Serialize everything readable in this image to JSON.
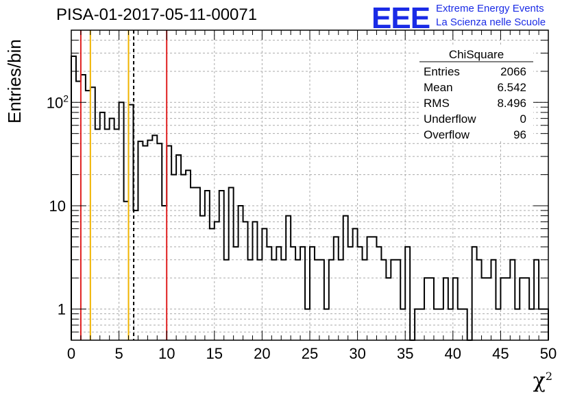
{
  "header": {
    "run_title": "PISA-01-2017-05-11-00071",
    "logo_text": "EEE",
    "logo_line1": "Extreme Energy Events",
    "logo_line2": "La Scienza nelle Scuole",
    "logo_color": "#1a2be6"
  },
  "stats_box": {
    "title": "ChiSquare",
    "rows": [
      {
        "label": "Entries",
        "value": "2066"
      },
      {
        "label": "Mean",
        "value": "6.542"
      },
      {
        "label": "RMS",
        "value": "8.496"
      },
      {
        "label": "Underflow",
        "value": "0"
      },
      {
        "label": "Overflow",
        "value": "96"
      }
    ]
  },
  "chart_data": {
    "type": "histogram",
    "xlabel": "χ",
    "xlabel_sup": "2",
    "ylabel": "Entries/bin",
    "xlim": [
      0,
      50
    ],
    "ylim": [
      0.5,
      500
    ],
    "y_scale": "log",
    "grid": true,
    "bin_width": 0.5,
    "x_ticks": [
      0,
      5,
      10,
      15,
      20,
      25,
      30,
      35,
      40,
      45,
      50
    ],
    "x_tick_labels": [
      "0",
      "5",
      "10",
      "15",
      "20",
      "25",
      "30",
      "35",
      "40",
      "45",
      "50"
    ],
    "y_ticks": [
      1,
      10,
      100
    ],
    "y_tick_labels": [
      "1",
      "10",
      "10^2"
    ],
    "values": [
      280,
      160,
      185,
      130,
      140,
      55,
      80,
      55,
      70,
      55,
      100,
      11,
      95,
      9,
      42,
      38,
      43,
      48,
      40,
      10,
      38,
      20,
      31,
      20,
      22,
      15,
      15,
      8,
      14,
      6,
      7,
      14,
      3,
      15,
      4,
      10,
      7,
      3,
      7,
      3,
      6,
      4,
      3,
      4,
      3,
      8,
      4,
      3,
      4,
      1,
      4,
      3,
      3,
      1,
      3,
      5,
      3,
      8,
      4,
      6,
      4,
      3,
      5,
      5,
      4,
      3,
      2,
      3,
      3,
      1,
      4,
      0.5,
      1,
      1,
      2,
      2,
      1,
      1,
      2,
      1,
      2,
      1,
      1,
      0.5,
      4,
      3,
      2,
      2,
      3,
      1,
      2,
      2,
      3,
      1,
      2,
      2,
      1,
      3,
      1,
      1
    ],
    "vertical_lines": [
      {
        "x": 1,
        "color": "#e02020",
        "style": "solid"
      },
      {
        "x": 2,
        "color": "#f0b400",
        "style": "solid"
      },
      {
        "x": 6,
        "color": "#f0b400",
        "style": "solid"
      },
      {
        "x": 6.542,
        "color": "#000000",
        "style": "dashed"
      },
      {
        "x": 10,
        "color": "#e02020",
        "style": "solid"
      }
    ]
  }
}
